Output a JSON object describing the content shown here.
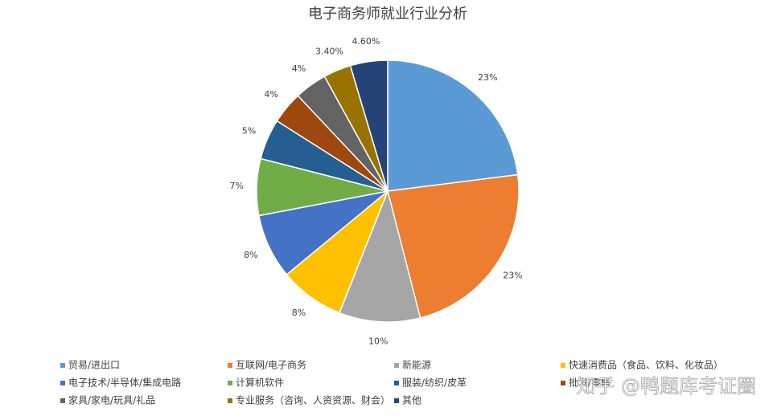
{
  "chart_data": {
    "type": "pie",
    "title": "电子商务师就业行业分析",
    "categories": [
      "贸易/进出口",
      "互联网/电子商务",
      "新能源",
      "快速消费品（食品、饮料、化妆品）",
      "电子技术/半导体/集成电路",
      "计算机软件",
      "服装/纺织/皮革",
      "批发/零售",
      "家具/家电/玩具/礼品",
      "专业服务（咨询、人资资源、财会）",
      "其他"
    ],
    "values": [
      23,
      23,
      10,
      8,
      8,
      7,
      5,
      4,
      4,
      3.4,
      4.6
    ],
    "value_labels": [
      "23%",
      "23%",
      "10%",
      "8%",
      "8%",
      "7%",
      "5%",
      "4%",
      "4%",
      "3.40%",
      "4.60%"
    ],
    "colors": [
      "#5b9bd5",
      "#ed7d31",
      "#a5a5a5",
      "#ffc000",
      "#4472c4",
      "#70ad47",
      "#255e91",
      "#9e480e",
      "#636363",
      "#997300",
      "#264478"
    ],
    "legend": "bottom"
  },
  "watermark": "知乎 @鸭题库考证圈"
}
